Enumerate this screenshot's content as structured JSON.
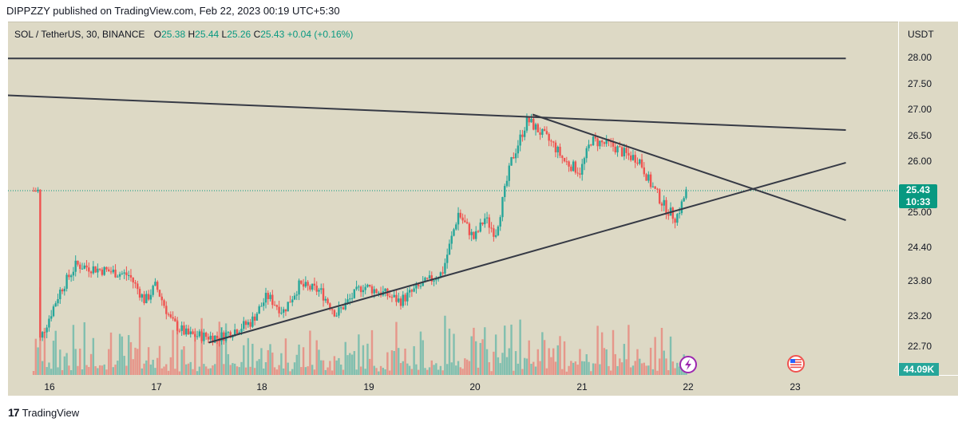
{
  "header": {
    "published": "DIPPZZY published on TradingView.com, Feb 22, 2023 00:19 UTC+5:30"
  },
  "legend": {
    "symbol": "SOL / TetherUS, 30, BINANCE",
    "o_label": "O",
    "o": "25.38",
    "h_label": "H",
    "h": "25.44",
    "l_label": "L",
    "l": "25.26",
    "c_label": "C",
    "c": "25.43",
    "change": "+0.04 (+0.16%)"
  },
  "price_axis": {
    "title": "USDT",
    "ticks": [
      "28.00",
      "27.50",
      "27.00",
      "26.50",
      "26.00",
      "25.00",
      "24.40",
      "23.80",
      "23.20",
      "22.70"
    ],
    "last_price": "25.43",
    "countdown": "10:33",
    "volume": "44.09K"
  },
  "time_axis": {
    "labels": [
      "16",
      "17",
      "18",
      "19",
      "20",
      "21",
      "22",
      "23"
    ]
  },
  "footer": {
    "brand": "TradingView",
    "logo": "17"
  },
  "colors": {
    "up": "#26a69a",
    "down": "#ef5350",
    "background": "#ddd9c5",
    "trendline": "#363a45",
    "accent": "#089981"
  },
  "icons": [
    "lightning-event-icon",
    "us-flag-event-icon"
  ],
  "chart_data": {
    "type": "candlestick",
    "title": "SOL / TetherUS, 30, BINANCE",
    "xlabel": "",
    "ylabel": "USDT",
    "ylim": [
      22.2,
      28.7
    ],
    "x_categories": [
      "16",
      "17",
      "18",
      "19",
      "20",
      "21",
      "22",
      "23"
    ],
    "last_price": 25.43,
    "close_path_approx": [
      [
        15.9,
        22.5
      ],
      [
        16.1,
        23.5
      ],
      [
        16.25,
        24.0
      ],
      [
        16.5,
        23.9
      ],
      [
        16.75,
        23.8
      ],
      [
        16.9,
        23.3
      ],
      [
        17.0,
        23.6
      ],
      [
        17.15,
        22.9
      ],
      [
        17.3,
        22.65
      ],
      [
        17.6,
        22.6
      ],
      [
        17.9,
        22.9
      ],
      [
        18.05,
        23.4
      ],
      [
        18.2,
        23.1
      ],
      [
        18.35,
        23.6
      ],
      [
        18.55,
        23.5
      ],
      [
        18.7,
        23.05
      ],
      [
        18.95,
        23.6
      ],
      [
        19.15,
        23.45
      ],
      [
        19.3,
        23.3
      ],
      [
        19.5,
        23.6
      ],
      [
        19.7,
        23.85
      ],
      [
        19.85,
        25.0
      ],
      [
        20.0,
        24.5
      ],
      [
        20.1,
        24.9
      ],
      [
        20.2,
        24.6
      ],
      [
        20.35,
        26.0
      ],
      [
        20.5,
        26.8
      ],
      [
        20.6,
        26.6
      ],
      [
        20.75,
        26.3
      ],
      [
        20.85,
        26.0
      ],
      [
        21.0,
        25.8
      ],
      [
        21.1,
        26.4
      ],
      [
        21.3,
        26.3
      ],
      [
        21.45,
        26.1
      ],
      [
        21.55,
        26.05
      ],
      [
        21.65,
        25.6
      ],
      [
        21.8,
        25.1
      ],
      [
        21.9,
        24.9
      ],
      [
        21.95,
        25.15
      ],
      [
        22.0,
        25.43
      ]
    ],
    "volume_max_approx": "44.09K",
    "trendlines": [
      {
        "name": "horizontal resistance",
        "from": [
          15.6,
          27.98
        ],
        "to": [
          23.5,
          27.98
        ]
      },
      {
        "name": "descending upper",
        "from": [
          15.6,
          27.27
        ],
        "to": [
          23.5,
          26.6
        ]
      },
      {
        "name": "descending from peak",
        "from": [
          20.55,
          26.9
        ],
        "to": [
          23.5,
          24.86
        ]
      },
      {
        "name": "ascending support",
        "from": [
          17.5,
          22.5
        ],
        "to": [
          23.5,
          25.97
        ]
      }
    ]
  }
}
